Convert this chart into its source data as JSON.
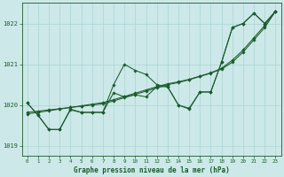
{
  "title": "Graphe pression niveau de la mer (hPa)",
  "bg_color": "#cce8e8",
  "grid_color": "#aad4d4",
  "line_color": "#1a5c2a",
  "ylim": [
    1018.75,
    1022.5
  ],
  "xlim": [
    -0.5,
    23.5
  ],
  "yticks": [
    1019,
    1020,
    1021,
    1022
  ],
  "xticks": [
    0,
    1,
    2,
    3,
    4,
    5,
    6,
    7,
    8,
    9,
    10,
    11,
    12,
    13,
    14,
    15,
    16,
    17,
    18,
    19,
    20,
    21,
    22,
    23
  ],
  "series": {
    "s1_x": [
      0,
      1,
      2,
      3,
      4,
      5,
      6,
      7,
      8,
      9,
      10,
      11,
      12,
      13,
      14,
      15,
      16,
      17,
      18,
      19,
      20,
      21,
      22,
      23
    ],
    "s1_y": [
      1020.05,
      1019.75,
      1019.4,
      1019.4,
      1019.9,
      1019.82,
      1019.82,
      1019.82,
      1020.5,
      1021.0,
      1020.85,
      1020.75,
      1020.5,
      1020.45,
      1020.0,
      1019.9,
      1020.32,
      1020.32,
      1021.05,
      1021.9,
      1022.0,
      1022.25,
      1022.0,
      1022.3
    ],
    "s2_x": [
      0,
      1,
      2,
      3,
      4,
      5,
      6,
      7,
      8,
      9,
      10,
      11,
      12,
      13,
      14,
      15,
      16,
      17,
      18,
      19,
      20,
      21,
      22,
      23
    ],
    "s2_y": [
      1020.05,
      1019.75,
      1019.4,
      1019.4,
      1019.88,
      1019.82,
      1019.82,
      1019.82,
      1020.3,
      1020.2,
      1020.25,
      1020.2,
      1020.45,
      1020.45,
      1020.0,
      1019.92,
      1020.32,
      1020.32,
      1021.05,
      1021.9,
      1022.0,
      1022.25,
      1022.0,
      1022.3
    ],
    "trend1_x": [
      0,
      1,
      2,
      3,
      4,
      5,
      6,
      7,
      8,
      9,
      10,
      11,
      12,
      13,
      14,
      15,
      16,
      17,
      18,
      19,
      20,
      21,
      22,
      23
    ],
    "trend1_y": [
      1019.82,
      1019.85,
      1019.88,
      1019.91,
      1019.94,
      1019.97,
      1020.0,
      1020.03,
      1020.1,
      1020.18,
      1020.26,
      1020.34,
      1020.42,
      1020.5,
      1020.55,
      1020.62,
      1020.7,
      1020.78,
      1020.88,
      1021.05,
      1021.3,
      1021.6,
      1021.9,
      1022.3
    ],
    "trend2_x": [
      0,
      1,
      2,
      3,
      4,
      5,
      6,
      7,
      8,
      9,
      10,
      11,
      12,
      13,
      14,
      15,
      16,
      17,
      18,
      19,
      20,
      21,
      22,
      23
    ],
    "trend2_y": [
      1019.78,
      1019.82,
      1019.86,
      1019.9,
      1019.94,
      1019.98,
      1020.02,
      1020.06,
      1020.13,
      1020.21,
      1020.29,
      1020.37,
      1020.45,
      1020.52,
      1020.57,
      1020.63,
      1020.71,
      1020.79,
      1020.9,
      1021.1,
      1021.35,
      1021.65,
      1021.95,
      1022.3
    ]
  }
}
